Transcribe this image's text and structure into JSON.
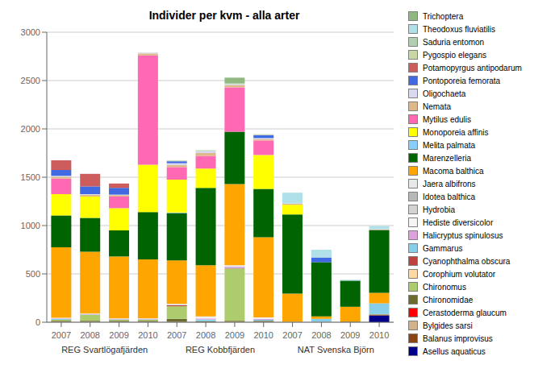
{
  "chart_data": {
    "type": "bar",
    "title": "Individer per kvm - alla arter",
    "stacked": true,
    "grid": true,
    "categories": [
      "2007",
      "2008",
      "2009",
      "2010",
      "2007",
      "2008",
      "2009",
      "2010",
      "2007",
      "2008",
      "2009",
      "2010"
    ],
    "groups": [
      "REG Svartlögafjärden",
      "REG Kobbfjärden",
      "NAT Svenska Björn"
    ],
    "ylim": [
      0,
      3000
    ],
    "yticks": [
      0,
      500,
      1000,
      1500,
      2000,
      2500,
      3000
    ],
    "series": [
      {
        "name": "Asellus aquaticus",
        "color": "#00008B",
        "values": [
          0,
          0,
          0,
          0,
          0,
          0,
          0,
          0,
          0,
          0,
          0,
          70
        ]
      },
      {
        "name": "Balanus improvisus",
        "color": "#8B4513",
        "values": [
          0,
          0,
          0,
          0,
          0,
          0,
          0,
          0,
          0,
          0,
          0,
          5
        ]
      },
      {
        "name": "Bylgides sarsi",
        "color": "#D2B48C",
        "values": [
          5,
          5,
          5,
          5,
          5,
          0,
          5,
          5,
          5,
          5,
          0,
          5
        ]
      },
      {
        "name": "Cerastoderma glaucum",
        "color": "#FF0000",
        "values": [
          0,
          0,
          0,
          0,
          0,
          0,
          0,
          0,
          0,
          0,
          0,
          0
        ]
      },
      {
        "name": "Chironomidae",
        "color": "#6B6B2E",
        "values": [
          10,
          10,
          10,
          10,
          30,
          10,
          10,
          10,
          0,
          0,
          5,
          5
        ]
      },
      {
        "name": "Chironomus",
        "color": "#ADCC6E",
        "values": [
          10,
          60,
          10,
          10,
          130,
          0,
          540,
          0,
          0,
          0,
          0,
          0
        ]
      },
      {
        "name": "Corophium volutator",
        "color": "#FFD7A0",
        "values": [
          0,
          0,
          0,
          0,
          0,
          0,
          0,
          0,
          0,
          0,
          0,
          0
        ]
      },
      {
        "name": "Cyanophthalma obscura",
        "color": "#C04040",
        "values": [
          0,
          0,
          0,
          0,
          10,
          0,
          5,
          0,
          0,
          0,
          0,
          0
        ]
      },
      {
        "name": "Gammarus",
        "color": "#87CEEB",
        "values": [
          10,
          5,
          5,
          5,
          5,
          20,
          5,
          10,
          0,
          30,
          0,
          110
        ]
      },
      {
        "name": "Halicryptus spinulosus",
        "color": "#DDA0DD",
        "values": [
          5,
          5,
          5,
          5,
          0,
          10,
          10,
          10,
          0,
          0,
          0,
          0
        ]
      },
      {
        "name": "Hediste diversicolor",
        "color": "#F5F5F5",
        "values": [
          5,
          5,
          5,
          5,
          5,
          10,
          10,
          10,
          0,
          0,
          0,
          0
        ]
      },
      {
        "name": "Hydrobia",
        "color": "#D3D3D3",
        "values": [
          0,
          0,
          0,
          0,
          0,
          0,
          0,
          0,
          0,
          0,
          0,
          0
        ]
      },
      {
        "name": "Idotea balthica",
        "color": "#B8B8B8",
        "values": [
          0,
          0,
          0,
          0,
          0,
          0,
          0,
          0,
          0,
          0,
          0,
          0
        ]
      },
      {
        "name": "Jaera albifrons",
        "color": "#E8E8E8",
        "values": [
          0,
          0,
          0,
          0,
          5,
          10,
          5,
          5,
          0,
          0,
          0,
          0
        ]
      },
      {
        "name": "Macoma balthica",
        "color": "#FFA500",
        "values": [
          730,
          640,
          640,
          610,
          450,
          530,
          840,
          830,
          290,
          25,
          155,
          110
        ]
      },
      {
        "name": "Marenzelleria",
        "color": "#006400",
        "values": [
          330,
          350,
          270,
          490,
          490,
          800,
          540,
          500,
          820,
          560,
          270,
          650
        ]
      },
      {
        "name": "Melita palmata",
        "color": "#87CEFA",
        "values": [
          0,
          0,
          0,
          0,
          5,
          0,
          0,
          0,
          0,
          0,
          0,
          0
        ]
      },
      {
        "name": "Monoporeia affinis",
        "color": "#FFFF00",
        "values": [
          220,
          220,
          230,
          490,
          340,
          200,
          0,
          350,
          100,
          0,
          0,
          0
        ]
      },
      {
        "name": "Mytilus edulis",
        "color": "#FF69B4",
        "values": [
          160,
          0,
          120,
          1130,
          130,
          130,
          460,
          150,
          0,
          0,
          0,
          0
        ]
      },
      {
        "name": "Nemata",
        "color": "#DEB887",
        "values": [
          20,
          20,
          15,
          20,
          20,
          30,
          20,
          15,
          10,
          0,
          0,
          5
        ]
      },
      {
        "name": "Oligochaeta",
        "color": "#D8D8F0",
        "values": [
          10,
          5,
          5,
          10,
          20,
          20,
          10,
          10,
          5,
          0,
          0,
          5
        ]
      },
      {
        "name": "Pontoporeia femorata",
        "color": "#4169E1",
        "values": [
          60,
          80,
          70,
          0,
          20,
          0,
          0,
          30,
          0,
          50,
          0,
          0
        ]
      },
      {
        "name": "Potamopyrgus antipodarum",
        "color": "#CD5C5C",
        "values": [
          100,
          130,
          45,
          0,
          0,
          0,
          0,
          0,
          0,
          0,
          0,
          0
        ]
      },
      {
        "name": "Pygospio elegans",
        "color": "#C8D8A0",
        "values": [
          0,
          0,
          0,
          0,
          5,
          0,
          5,
          5,
          0,
          0,
          0,
          0
        ]
      },
      {
        "name": "Saduria entomon",
        "color": "#B0D0B0",
        "values": [
          0,
          0,
          0,
          0,
          5,
          10,
          10,
          5,
          0,
          0,
          0,
          0
        ]
      },
      {
        "name": "Theodoxus fluviatilis",
        "color": "#B0E0E8",
        "values": [
          0,
          0,
          0,
          0,
          0,
          0,
          0,
          0,
          110,
          80,
          10,
          30
        ]
      },
      {
        "name": "Trichoptera",
        "color": "#90B880",
        "values": [
          0,
          0,
          0,
          0,
          0,
          0,
          55,
          0,
          0,
          0,
          0,
          0
        ]
      }
    ]
  }
}
